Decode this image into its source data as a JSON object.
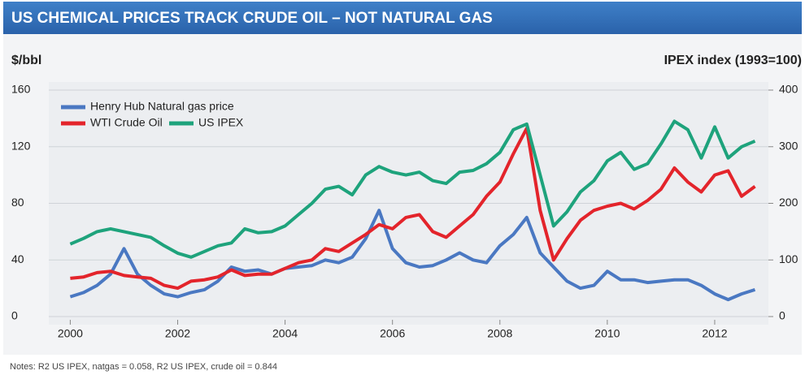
{
  "chart_data": {
    "type": "line",
    "title": "US CHEMICAL PRICES TRACK CRUDE OIL – NOT NATURAL GAS",
    "y_label": "$/bbl",
    "y2_label": "IPEX index (1993=100)",
    "note": "Notes: R2 US IPEX, natgas = 0.058, R2 US IPEX, crude oil = 0.844",
    "x": [
      2000.0,
      2000.25,
      2000.5,
      2000.75,
      2001.0,
      2001.25,
      2001.5,
      2001.75,
      2002.0,
      2002.25,
      2002.5,
      2002.75,
      2003.0,
      2003.25,
      2003.5,
      2003.75,
      2004.0,
      2004.25,
      2004.5,
      2004.75,
      2005.0,
      2005.25,
      2005.5,
      2005.75,
      2006.0,
      2006.25,
      2006.5,
      2006.75,
      2007.0,
      2007.25,
      2007.5,
      2007.75,
      2008.0,
      2008.25,
      2008.5,
      2008.75,
      2009.0,
      2009.25,
      2009.5,
      2009.75,
      2010.0,
      2010.25,
      2010.5,
      2010.75,
      2011.0,
      2011.25,
      2011.5,
      2011.75,
      2012.0,
      2012.25,
      2012.5,
      2012.75
    ],
    "series": [
      {
        "name": "Henry Hub Natural gas price",
        "color": "#4a78c2",
        "values": [
          14,
          17,
          22,
          30,
          48,
          30,
          22,
          16,
          14,
          17,
          19,
          25,
          35,
          32,
          33,
          30,
          34,
          35,
          36,
          40,
          38,
          42,
          55,
          75,
          48,
          38,
          35,
          36,
          40,
          45,
          40,
          38,
          50,
          58,
          70,
          45,
          35,
          25,
          20,
          22,
          32,
          26,
          26,
          24,
          25,
          26,
          26,
          22,
          16,
          12,
          16,
          19
        ]
      },
      {
        "name": "WTI Crude Oil",
        "color": "#e3242b",
        "values": [
          27,
          28,
          31,
          32,
          29,
          28,
          27,
          22,
          20,
          25,
          26,
          28,
          33,
          29,
          30,
          30,
          34,
          38,
          40,
          48,
          46,
          52,
          58,
          65,
          62,
          70,
          72,
          60,
          56,
          64,
          72,
          85,
          95,
          115,
          133,
          75,
          40,
          55,
          68,
          75,
          78,
          80,
          76,
          82,
          90,
          105,
          95,
          88,
          100,
          103,
          85,
          92
        ]
      },
      {
        "name": "US IPEX",
        "color": "#1ea37c",
        "axis": "y2",
        "values": [
          128,
          138,
          150,
          155,
          150,
          145,
          140,
          125,
          112,
          105,
          115,
          125,
          130,
          155,
          148,
          150,
          160,
          180,
          200,
          225,
          230,
          215,
          250,
          265,
          255,
          250,
          255,
          240,
          235,
          255,
          258,
          270,
          290,
          330,
          340,
          250,
          160,
          185,
          220,
          240,
          275,
          290,
          260,
          270,
          305,
          345,
          330,
          280,
          335,
          280,
          300,
          310
        ]
      }
    ],
    "xlim": [
      1999.6,
      2013.0
    ],
    "xticks": [
      2000,
      2002,
      2004,
      2006,
      2008,
      2010,
      2012
    ],
    "ylim": [
      0,
      160
    ],
    "yticks": [
      0,
      40,
      80,
      120,
      160
    ],
    "y2lim": [
      0,
      400
    ],
    "y2ticks": [
      0,
      100,
      200,
      300,
      400
    ],
    "grid": true,
    "legend": "upper left"
  }
}
